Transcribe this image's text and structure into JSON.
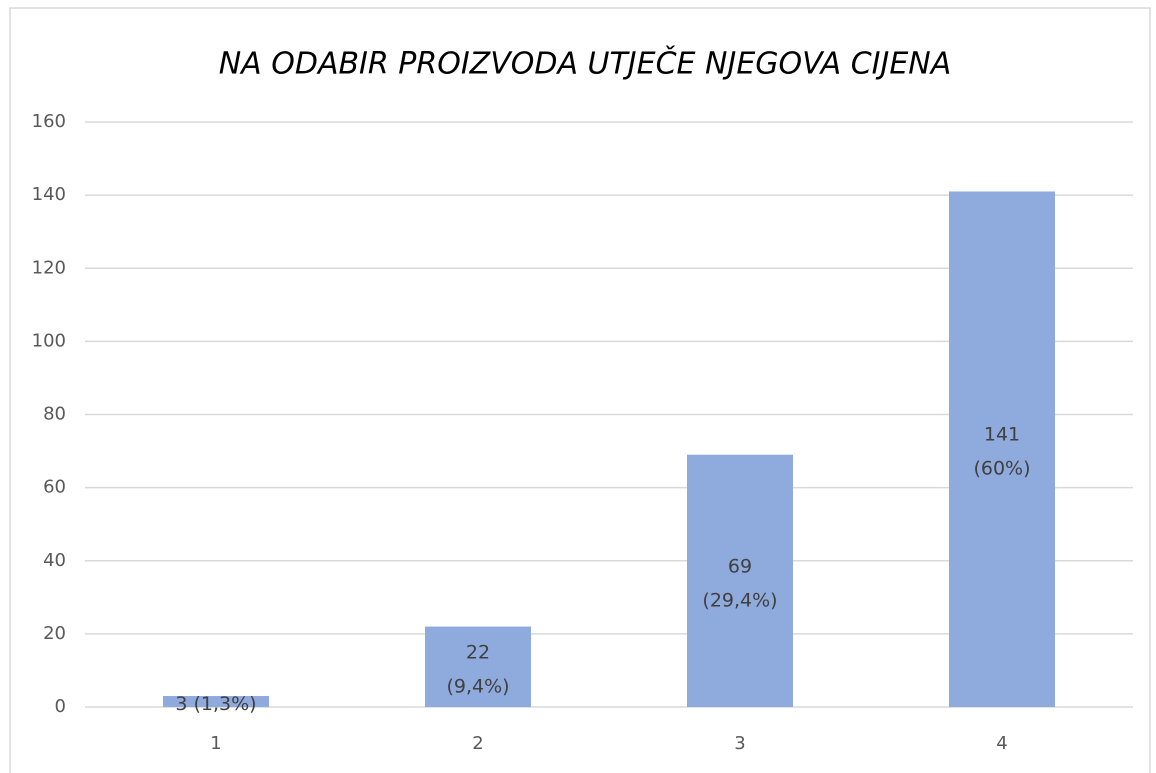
{
  "chart_data": {
    "type": "bar",
    "title": "NA ODABIR PROIZVODA UTJEČE NJEGOVA CIJENA",
    "categories": [
      "1",
      "2",
      "3",
      "4"
    ],
    "values": [
      3,
      22,
      69,
      141
    ],
    "value_labels": [
      [
        "3 (1,3%)"
      ],
      [
        "22",
        "(9,4%)"
      ],
      [
        "69",
        "(29,4%)"
      ],
      [
        "141",
        "(60%)"
      ]
    ],
    "color": "#8faadc",
    "ylim": [
      0,
      160
    ],
    "yticks": [
      0,
      20,
      40,
      60,
      80,
      100,
      120,
      140,
      160
    ],
    "grid": true
  }
}
